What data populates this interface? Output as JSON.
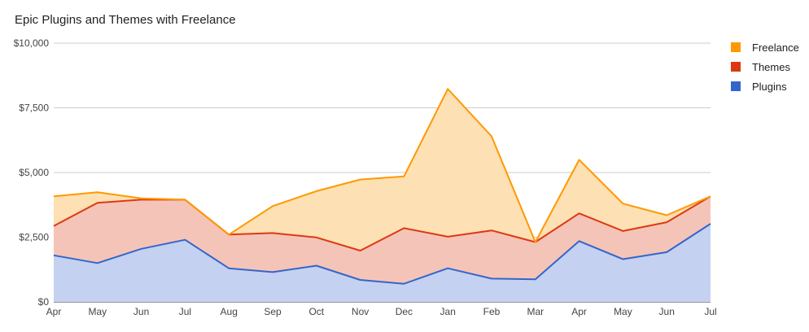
{
  "chart_data": {
    "type": "area",
    "stacked": true,
    "title": "Epic Plugins and Themes with Freelance",
    "xlabel": "",
    "ylabel": "",
    "x": [
      "Apr",
      "May",
      "Jun",
      "Jul",
      "Aug",
      "Sep",
      "Oct",
      "Nov",
      "Dec",
      "Jan",
      "Feb",
      "Mar",
      "Apr",
      "May",
      "Jun",
      "Jul"
    ],
    "ylim": [
      0,
      10000
    ],
    "yticks": [
      0,
      2500,
      5000,
      7500,
      10000
    ],
    "ytick_labels": [
      "$0",
      "$2,500",
      "$5,000",
      "$7,500",
      "$10,000"
    ],
    "grid": true,
    "legend_position": "right",
    "series": [
      {
        "name": "Plugins",
        "color": "#3366cc",
        "fill": "#c5d1f0",
        "values": [
          1800,
          1500,
          2050,
          2400,
          1300,
          1150,
          1400,
          850,
          700,
          1300,
          900,
          870,
          2350,
          1650,
          1920,
          3020
        ]
      },
      {
        "name": "Themes",
        "color": "#dc3912",
        "fill": "#f5c4b8",
        "values": [
          1130,
          2330,
          1900,
          1550,
          1300,
          1510,
          1090,
          1130,
          2150,
          1220,
          1860,
          1440,
          1070,
          1090,
          1160,
          1060
        ]
      },
      {
        "name": "Freelance",
        "color": "#ff9900",
        "fill": "#fde0b3",
        "values": [
          1150,
          410,
          50,
          0,
          0,
          1040,
          1790,
          2750,
          2000,
          5710,
          3640,
          0,
          2070,
          1060,
          270,
          0
        ]
      }
    ]
  },
  "legend_order": [
    "Freelance",
    "Themes",
    "Plugins"
  ]
}
